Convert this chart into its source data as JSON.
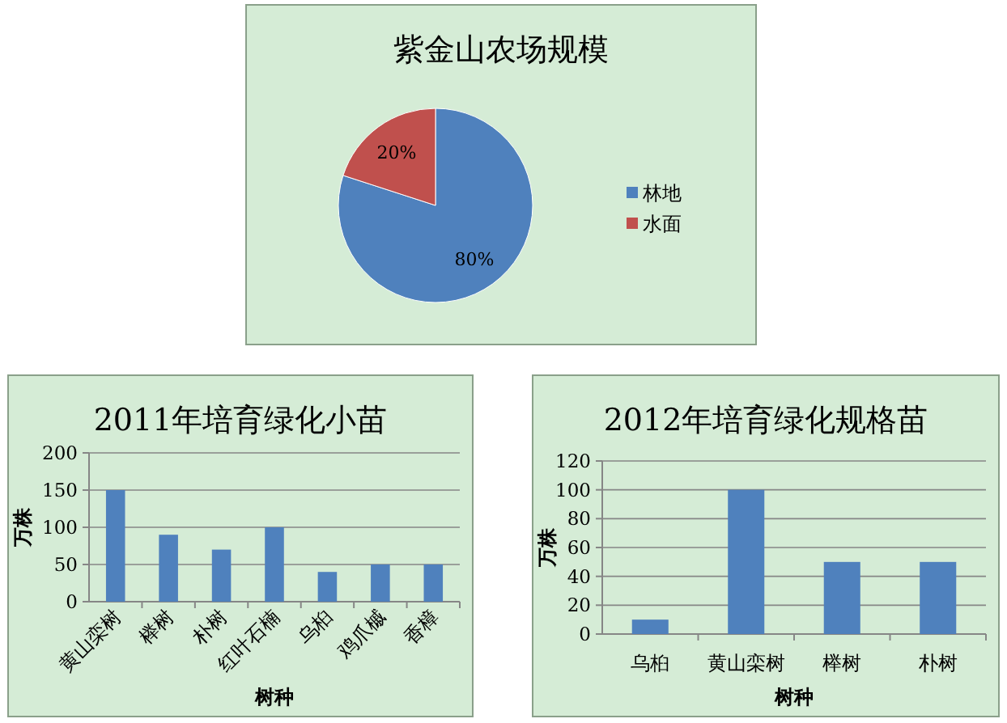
{
  "chart_data": [
    {
      "type": "pie",
      "title": "紫金山农场规模",
      "categories": [
        "林地",
        "水面"
      ],
      "values": [
        80,
        20
      ],
      "colors": [
        "#4f81bd",
        "#c0504d"
      ],
      "value_labels": [
        "80%",
        "20%"
      ],
      "legend": "right"
    },
    {
      "type": "bar",
      "title": "2011年培育绿化小苗",
      "xlabel": "树种",
      "ylabel": "万株",
      "categories": [
        "黄山栾树",
        "榉树",
        "朴树",
        "红叶石楠",
        "乌桕",
        "鸡爪槭",
        "香樟"
      ],
      "values": [
        150,
        90,
        70,
        100,
        40,
        50,
        50
      ],
      "color": "#4f81bd",
      "ylim": [
        0,
        200
      ],
      "yticks": [
        0,
        50,
        100,
        150,
        200
      ],
      "grid": "y"
    },
    {
      "type": "bar",
      "title": "2012年培育绿化规格苗",
      "xlabel": "树种",
      "ylabel": "万株",
      "categories": [
        "乌桕",
        "黄山栾树",
        "榉树",
        "朴树"
      ],
      "values": [
        10,
        100,
        50,
        50
      ],
      "color": "#4f81bd",
      "ylim": [
        0,
        120
      ],
      "yticks": [
        0,
        20,
        40,
        60,
        80,
        100,
        120
      ],
      "grid": "y"
    }
  ]
}
